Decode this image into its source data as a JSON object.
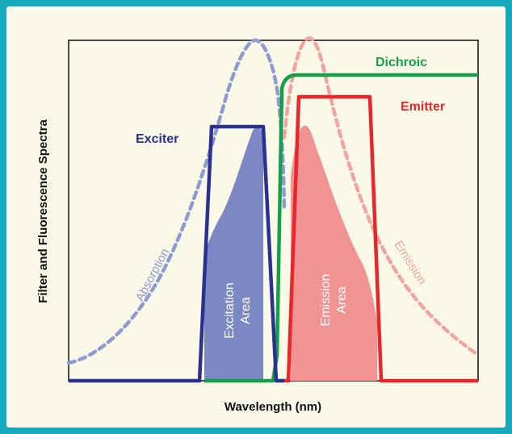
{
  "ylabel": "Filter and Fluorescence Spectra",
  "xlabel": "Wavelength (nm)",
  "curves": {
    "exciter": "Exciter",
    "dichroic": "Dichroic",
    "emitter": "Emitter",
    "absorption": "Absorption",
    "emission": "Emission"
  },
  "areas": {
    "excitation_line1": "Excitation",
    "excitation_line2": "Area",
    "emission_line1": "Emission",
    "emission_line2": "Area"
  },
  "colors": {
    "background": "#16a9b9",
    "panel": "#faf9e8",
    "exciter": "#2b3193",
    "absorption": "#8d9bd2",
    "excitation_fill": "#7b88c4",
    "dichroic": "#14a04a",
    "emitter": "#e8262b",
    "emission_curve": "#f3a4a1",
    "emission_fill": "#f19393"
  }
}
